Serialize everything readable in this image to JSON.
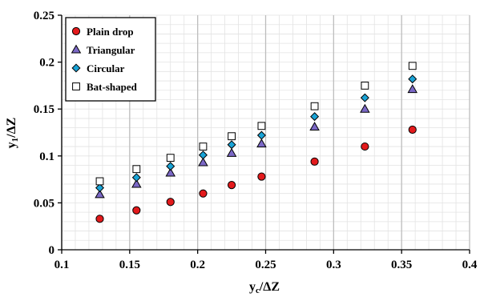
{
  "chart_data": {
    "type": "scatter",
    "title": "",
    "xlabel": "y",
    "xlabel_sub": "c",
    "xlabel_suffix": "/ΔZ",
    "ylabel": "y",
    "ylabel_sub": "1",
    "ylabel_suffix": "/ΔZ",
    "xlim": [
      0.1,
      0.4
    ],
    "ylim": [
      0,
      0.25
    ],
    "xticks": [
      0.1,
      0.15,
      0.2,
      0.25,
      0.3,
      0.35,
      0.4
    ],
    "yticks": [
      0,
      0.05,
      0.1,
      0.15,
      0.2,
      0.25
    ],
    "xtick_labels": [
      "0.1",
      "0.15",
      "0.2",
      "0.25",
      "0.3",
      "0.35",
      "0.4"
    ],
    "ytick_labels": [
      "0",
      "0.05",
      "0.1",
      "0.15",
      "0.2",
      "0.25"
    ],
    "grid": "major vertical and minor lines",
    "legend_position": "top-left",
    "x": [
      0.128,
      0.155,
      0.18,
      0.204,
      0.225,
      0.247,
      0.286,
      0.323,
      0.358
    ],
    "series": [
      {
        "name": "Plain drop",
        "marker": "circle",
        "color": "#e31a1c",
        "values": [
          0.033,
          0.042,
          0.051,
          0.06,
          0.069,
          0.078,
          0.094,
          0.11,
          0.128
        ]
      },
      {
        "name": "Triangular",
        "marker": "triangle",
        "color": "#7b68c6",
        "values": [
          0.059,
          0.07,
          0.082,
          0.093,
          0.103,
          0.113,
          0.131,
          0.15,
          0.171
        ]
      },
      {
        "name": "Circular",
        "marker": "diamond",
        "color": "#1aa3d6",
        "values": [
          0.066,
          0.077,
          0.089,
          0.101,
          0.112,
          0.122,
          0.142,
          0.162,
          0.182
        ]
      },
      {
        "name": "Bat-shaped",
        "marker": "square",
        "color": "#ffffff",
        "values": [
          0.073,
          0.086,
          0.098,
          0.11,
          0.121,
          0.132,
          0.153,
          0.175,
          0.196
        ]
      }
    ]
  }
}
